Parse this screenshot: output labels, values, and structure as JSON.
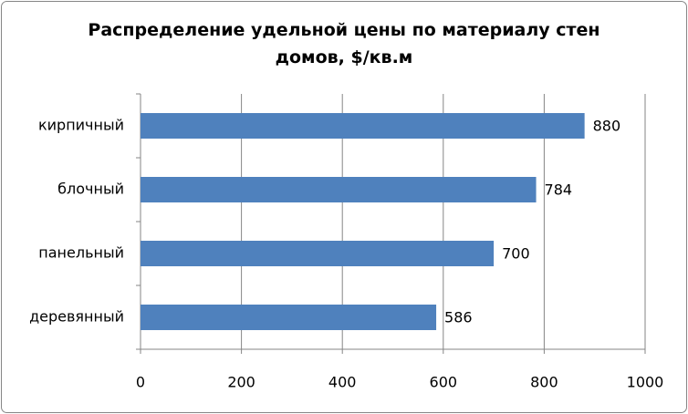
{
  "chart_data": {
    "type": "bar",
    "orientation": "horizontal",
    "title": "Распределение удельной цены по материалу стен домов, $/кв.м",
    "categories": [
      "кирпичный",
      "блочный",
      "панельный",
      "деревянный"
    ],
    "values": [
      880,
      784,
      700,
      586
    ],
    "color": "#4f81bd",
    "xlim": [
      0,
      1000
    ],
    "xticks": [
      0,
      200,
      400,
      600,
      800,
      1000
    ],
    "grid": true,
    "data_labels": true
  }
}
